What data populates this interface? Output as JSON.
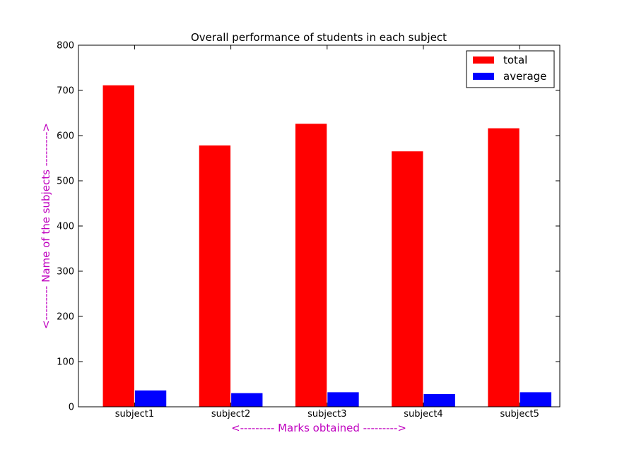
{
  "chart_data": {
    "type": "bar",
    "title": "Overall performance of students in each subject",
    "xlabel": "<--------- Marks obtained --------->",
    "ylabel": "<--------- Name of the subjects --------->",
    "label_color": "#bf00bf",
    "categories": [
      "subject1",
      "subject2",
      "subject3",
      "subject4",
      "subject5"
    ],
    "series": [
      {
        "name": "total",
        "color": "#ff0000",
        "values": [
          712,
          579,
          627,
          566,
          617
        ]
      },
      {
        "name": "average",
        "color": "#0000ff",
        "values": [
          37,
          31,
          33,
          29,
          33
        ]
      }
    ],
    "ylim": [
      0,
      800
    ],
    "yticks": [
      0,
      100,
      200,
      300,
      400,
      500,
      600,
      700,
      800
    ],
    "grid": false,
    "legend": "top-right"
  }
}
